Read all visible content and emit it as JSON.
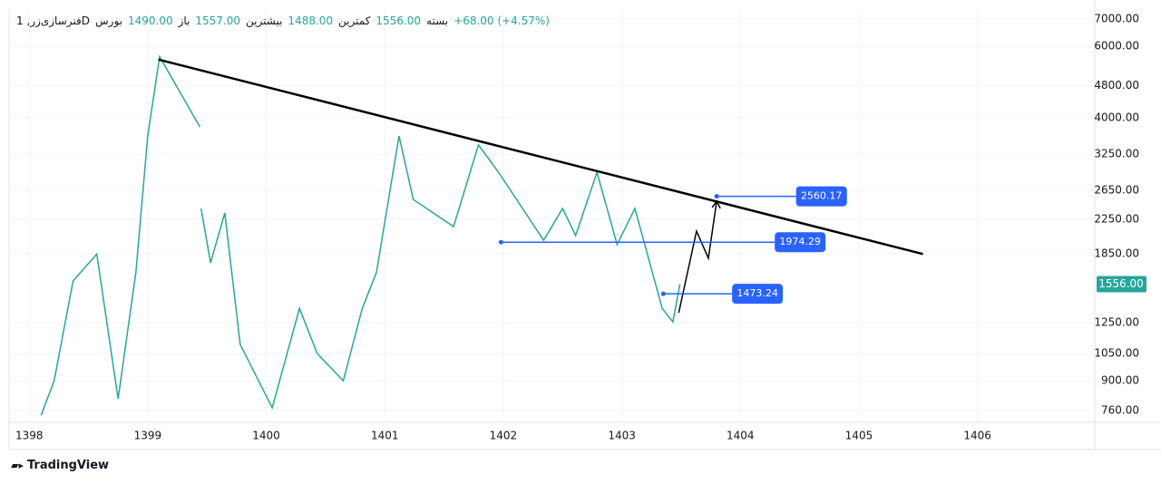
{
  "header": {
    "symbol": "فنرسازی‌زر, 1D",
    "exchange": "بورس",
    "ohlc": [
      {
        "label": "باز",
        "value": "1490.00"
      },
      {
        "label": "بیشترین",
        "value": "1557.00"
      },
      {
        "label": "کمترین",
        "value": "1488.00"
      },
      {
        "label": "بسته",
        "value": "1556.00"
      }
    ],
    "change": "+68.00 (+4.57%)"
  },
  "chart_data": {
    "type": "line",
    "log_scale": true,
    "grid": true,
    "series": [
      {
        "color": "#26a69a",
        "x": [
          1398.1,
          1398.21,
          1398.37,
          1398.57,
          1398.75,
          1398.9,
          1399.0,
          1399.1,
          1399.44,
          null,
          1399.45,
          1399.53,
          1399.65,
          1399.78,
          1400.05,
          1400.28,
          1400.43,
          1400.65,
          1400.81,
          1400.93,
          1401.12,
          1401.24,
          1401.58,
          1401.79,
          1401.96,
          1402.34,
          1402.5,
          1402.61,
          1402.79,
          1402.96,
          1403.11,
          1403.34,
          1403.43,
          1403.49
        ],
        "values": [
          740,
          900,
          1585,
          1846,
          812,
          1666,
          3605,
          5649,
          3793,
          null,
          2390,
          1757,
          2330,
          1106,
          772,
          1357,
          1050,
          900,
          1357,
          1666,
          3605,
          2515,
          2156,
          3426,
          2933,
          1996,
          2390,
          2050,
          2933,
          1948,
          2390,
          1357,
          1257,
          1556
        ]
      }
    ],
    "xlim": [
      1397.83,
      1406.99
    ],
    "xticks": [
      1398,
      1399,
      1400,
      1401,
      1402,
      1403,
      1404,
      1405,
      1406
    ],
    "ylim": [
      711,
      7400
    ],
    "yticks": [
      {
        "value": 760,
        "label": "760.00"
      },
      {
        "value": 900,
        "label": "900.00"
      },
      {
        "value": 1050,
        "label": "1050.00"
      },
      {
        "value": 1250,
        "label": "1250.00"
      },
      {
        "value": 1850,
        "label": "1850.00"
      },
      {
        "value": 2250,
        "label": "2250.00"
      },
      {
        "value": 2650,
        "label": "2650.00"
      },
      {
        "value": 3250,
        "label": "3250.00"
      },
      {
        "value": 4000,
        "label": "4000.00"
      },
      {
        "value": 4800,
        "label": "4800.00"
      },
      {
        "value": 6000,
        "label": "6000.00"
      },
      {
        "value": 7000,
        "label": "7000.00"
      }
    ],
    "last_price": {
      "value": 1556,
      "label": "1556.00"
    },
    "drawings": {
      "trendline": {
        "color": "#000000",
        "x": [
          1399.09,
          1405.54
        ],
        "values": [
          5560,
          1846
        ]
      },
      "projection": {
        "color": "#000000",
        "x": [
          1403.48,
          1403.63,
          1403.73,
          1403.8
        ],
        "values": [
          1324,
          2102,
          1802,
          2491
        ]
      },
      "levels": [
        {
          "x": [
            1401.98,
            1404.29
          ],
          "value": 1974.29
        },
        {
          "x": [
            1403.35,
            1403.93
          ],
          "value": 1473.24
        },
        {
          "x": [
            1403.8,
            1404.47
          ],
          "value": 2560.17
        }
      ],
      "level_color": "#2962ff"
    }
  },
  "footer": {
    "brand": "TradingView"
  }
}
